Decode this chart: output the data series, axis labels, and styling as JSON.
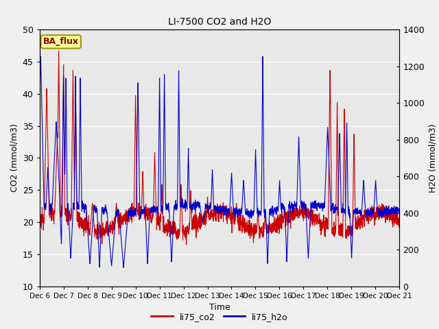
{
  "title": "LI-7500 CO2 and H2O",
  "xlabel": "Time",
  "ylabel_left": "CO2 (mmol/m3)",
  "ylabel_right": "H2O (mmol/m3)",
  "ylim_left": [
    10,
    50
  ],
  "ylim_right": [
    0,
    1400
  ],
  "annotation_text": "BA_flux",
  "line_co2_color": "#CC0000",
  "line_h2o_color": "#0000CC",
  "line_width": 0.8,
  "fig_bg_color": "#f0f0f0",
  "axes_bg_color": "#e8e8e8",
  "legend_labels": [
    "li75_co2",
    "li75_h2o"
  ],
  "tick_labels": [
    "Dec 6",
    "Dec 7",
    "Dec 8",
    "Dec 9",
    "Dec 10",
    "Dec 11",
    "Dec 12",
    "Dec 13",
    "Dec 14",
    "Dec 15",
    "Dec 16",
    "Dec 17",
    "Dec 18",
    "Dec 19",
    "Dec 20",
    "Dec 21"
  ],
  "yticks_left": [
    10,
    15,
    20,
    25,
    30,
    35,
    40,
    45,
    50
  ],
  "yticks_right": [
    0,
    200,
    400,
    600,
    800,
    1000,
    1200,
    1400
  ],
  "grid_color": "#ffffff",
  "annotation_facecolor": "#FFFF99",
  "annotation_edgecolor": "#999900",
  "annotation_textcolor": "#880000"
}
